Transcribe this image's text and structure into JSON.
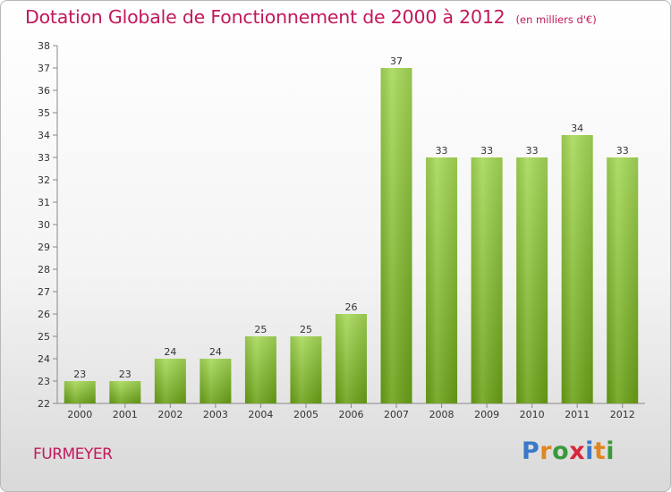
{
  "title": "Dotation Globale de Fonctionnement de 2000 à 2012",
  "unit_note": "(en milliers d'€)",
  "commune": "FURMEYER",
  "logo": {
    "letters": [
      "P",
      "r",
      "o",
      "x",
      "i",
      "t",
      "i"
    ],
    "colors": [
      "#3a78c9",
      "#e0861f",
      "#3a9a3a",
      "#d7263d",
      "#3a78c9",
      "#e0861f",
      "#3a9a3a"
    ]
  },
  "chart_data": {
    "type": "bar",
    "categories": [
      "2000",
      "2001",
      "2002",
      "2003",
      "2004",
      "2005",
      "2006",
      "2007",
      "2008",
      "2009",
      "2010",
      "2011",
      "2012"
    ],
    "values": [
      23,
      23,
      24,
      24,
      25,
      25,
      26,
      37,
      33,
      33,
      33,
      34,
      33
    ],
    "ylim": [
      22,
      38
    ],
    "yticks": [
      22,
      23,
      24,
      25,
      26,
      27,
      28,
      29,
      30,
      31,
      32,
      33,
      34,
      35,
      36,
      37,
      38
    ],
    "grid": false,
    "bar_color": "#8cc63f"
  }
}
